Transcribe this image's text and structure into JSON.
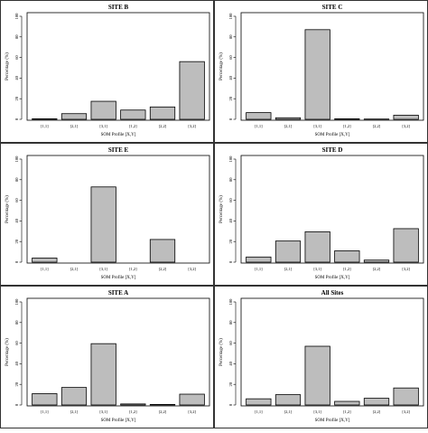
{
  "chart_data": [
    {
      "type": "bar",
      "title": "SITE B",
      "categories": [
        "[1,1]",
        "[2,1]",
        "[3,1]",
        "[1,2]",
        "[2,2]",
        "[3,2]"
      ],
      "values": [
        0.5,
        5.5,
        17.5,
        9.0,
        12.0,
        56.0
      ],
      "xlabel": "SOM Profile [X,Y]",
      "ylabel": "Percentage (%)",
      "ylim": [
        0,
        100
      ],
      "yticks": [
        "0",
        "20",
        "40",
        "60",
        "80",
        "100"
      ]
    },
    {
      "type": "bar",
      "title": "SITE C",
      "categories": [
        "[1,1]",
        "[2,1]",
        "[3,1]",
        "[1,2]",
        "[2,2]",
        "[3,2]"
      ],
      "values": [
        6.5,
        1.5,
        87.0,
        0.5,
        0.3,
        4.0
      ],
      "xlabel": "SOM Profile [X,Y]",
      "ylabel": "Percentage (%)",
      "ylim": [
        0,
        100
      ],
      "yticks": [
        "0",
        "20",
        "40",
        "60",
        "80",
        "100"
      ]
    },
    {
      "type": "bar",
      "title": "SITE E",
      "categories": [
        "[1,1]",
        "[2,1]",
        "[3,1]",
        "[1,2]",
        "[2,2]",
        "[3,2]"
      ],
      "values": [
        4.0,
        0,
        73.0,
        0,
        22.0,
        0
      ],
      "xlabel": "SOM Profile [X,Y]",
      "ylabel": "Percentage (%)",
      "ylim": [
        0,
        100
      ],
      "yticks": [
        "0",
        "20",
        "40",
        "60",
        "80",
        "100"
      ]
    },
    {
      "type": "bar",
      "title": "SITE D",
      "categories": [
        "[1,1]",
        "[2,1]",
        "[3,1]",
        "[1,2]",
        "[2,2]",
        "[3,2]"
      ],
      "values": [
        5.0,
        20.5,
        29.5,
        11.0,
        2.0,
        32.5
      ],
      "xlabel": "SOM Profile [X,Y]",
      "ylabel": "Percentage (%)",
      "ylim": [
        0,
        100
      ],
      "yticks": [
        "0",
        "20",
        "40",
        "60",
        "80",
        "100"
      ]
    },
    {
      "type": "bar",
      "title": "SITE A",
      "categories": [
        "[1,1]",
        "[2,1]",
        "[3,1]",
        "[1,2]",
        "[2,2]",
        "[3,2]"
      ],
      "values": [
        11.0,
        17.0,
        59.5,
        1.0,
        0.5,
        10.5
      ],
      "xlabel": "SOM Profile [X,Y]",
      "ylabel": "Percentage (%)",
      "ylim": [
        0,
        100
      ],
      "yticks": [
        "0",
        "20",
        "40",
        "60",
        "80",
        "100"
      ]
    },
    {
      "type": "bar",
      "title": "All Sites",
      "categories": [
        "[1,1]",
        "[2,1]",
        "[3,1]",
        "[1,2]",
        "[2,2]",
        "[3,2]"
      ],
      "values": [
        6.0,
        10.0,
        57.0,
        3.5,
        6.5,
        16.5
      ],
      "xlabel": "SOM Profile [X,Y]",
      "ylabel": "Percentage (%)",
      "ylim": [
        0,
        100
      ],
      "yticks": [
        "0",
        "20",
        "40",
        "60",
        "80",
        "100"
      ]
    }
  ]
}
